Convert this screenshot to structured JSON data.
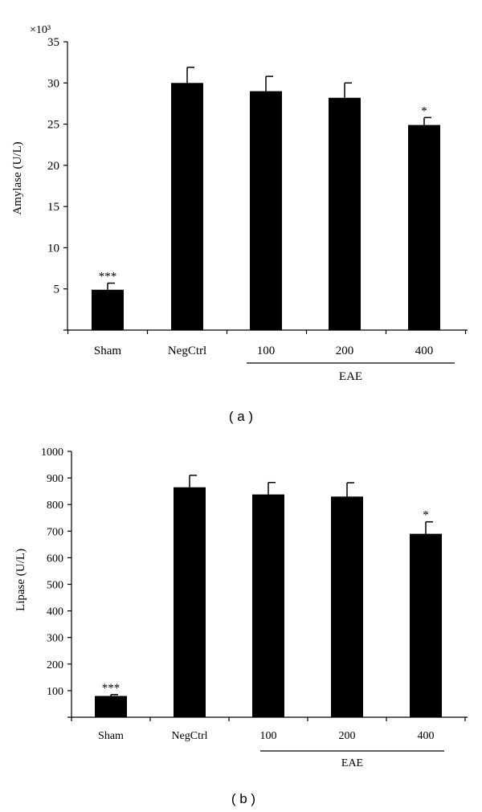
{
  "figure": {
    "background": "#ffffff",
    "bar_color": "#000000"
  },
  "chart_data": [
    {
      "type": "bar",
      "panel_label": "( a )",
      "ylabel": "Amylase (U/L)",
      "scale_label": "×10³",
      "categories": [
        "Sham",
        "NegCtrl",
        "100",
        "200",
        "400"
      ],
      "values": [
        4.9,
        30.0,
        29.0,
        28.2,
        24.9
      ],
      "errors": [
        0.8,
        1.9,
        1.8,
        1.8,
        0.9
      ],
      "significance": [
        "***",
        "",
        "",
        "",
        "*"
      ],
      "ylim": [
        0,
        35
      ],
      "yticks": [
        5,
        10,
        15,
        20,
        25,
        30,
        35
      ],
      "group_label": "EAE"
    },
    {
      "type": "bar",
      "panel_label": "( b )",
      "ylabel": "Lipase (U/L)",
      "categories": [
        "Sham",
        "NegCtrl",
        "100",
        "200",
        "400"
      ],
      "values": [
        80,
        865,
        838,
        830,
        690
      ],
      "errors": [
        5,
        45,
        45,
        52,
        45
      ],
      "significance": [
        "***",
        "",
        "",
        "",
        "*"
      ],
      "ylim": [
        0,
        1000
      ],
      "yticks": [
        100,
        200,
        300,
        400,
        500,
        600,
        700,
        800,
        900,
        1000
      ],
      "group_label": "EAE"
    }
  ]
}
